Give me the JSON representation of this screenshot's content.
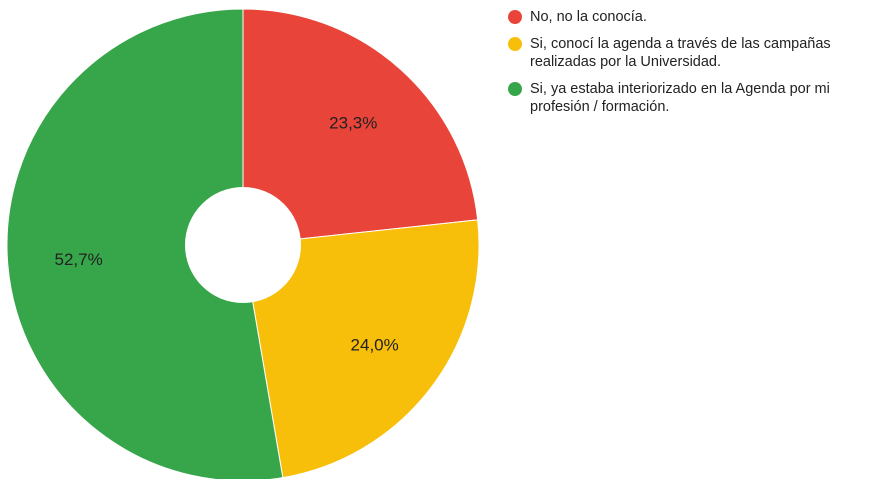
{
  "chart_data": {
    "type": "pie",
    "donut": true,
    "slices": [
      {
        "label": "No, no la conocía.",
        "lines": [
          "No, no la conocía."
        ],
        "value": 23.3,
        "display": "23,3%",
        "color": "#e8443a"
      },
      {
        "label": "Si, conocí la agenda a través de las campañas realizadas por la Universidad.",
        "lines": [
          "Si, conocí la agenda a través de las campañas",
          "realizadas por la Universidad."
        ],
        "value": 24.0,
        "display": "24,0%",
        "color": "#f7be0a"
      },
      {
        "label": "Si, ya estaba interiorizado en la Agenda por mi profesión / formación.",
        "lines": [
          "Si, ya estaba interiorizado en la Agenda por mi",
          "profesión / formación."
        ],
        "value": 52.7,
        "display": "52,7%",
        "color": "#37a54a"
      }
    ],
    "legend_position": "right"
  }
}
